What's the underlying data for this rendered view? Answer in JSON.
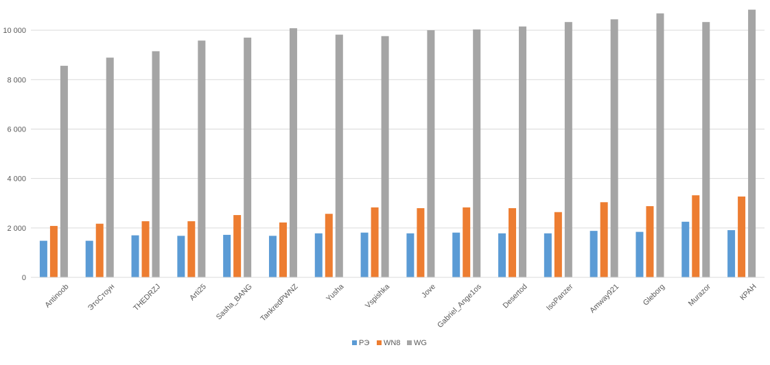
{
  "chart_data": {
    "type": "bar",
    "categories": [
      "Antinoob",
      "ЭтоСтоун",
      "THEDRZJ",
      "Arti25",
      "Sasha_BANG",
      "TankredPWNZ",
      "Yusha",
      "Vspishka",
      "Jove",
      "Gabriel_Ange1os",
      "Desertod",
      "IsoPanzer",
      "Amway921",
      "Gleborg",
      "Murazor",
      "КРАН"
    ],
    "series": [
      {
        "name": "РЭ",
        "color": "#5b9bd5",
        "values": [
          1480,
          1480,
          1700,
          1680,
          1720,
          1680,
          1780,
          1810,
          1780,
          1810,
          1780,
          1780,
          1880,
          1840,
          2250,
          1910
        ]
      },
      {
        "name": "WN8",
        "color": "#ed7d31",
        "values": [
          2080,
          2170,
          2270,
          2270,
          2520,
          2220,
          2570,
          2830,
          2800,
          2830,
          2800,
          2640,
          3040,
          2880,
          3320,
          3270
        ]
      },
      {
        "name": "WG",
        "color": "#a5a5a5",
        "values": [
          8560,
          8890,
          9150,
          9580,
          9700,
          10080,
          9820,
          9760,
          10000,
          10030,
          10150,
          10330,
          10440,
          10680,
          10330,
          10830
        ]
      }
    ],
    "y_ticks": [
      "0",
      "2 000",
      "4 000",
      "6 000",
      "8 000",
      "10 000"
    ],
    "ylim": [
      0,
      11000
    ],
    "grid": true,
    "legend_position": "bottom"
  }
}
